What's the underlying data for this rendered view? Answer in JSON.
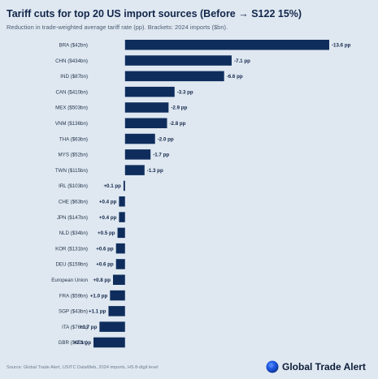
{
  "title": "Tariff cuts for top 20 US import sources (Before → S122 15%)",
  "subtitle": "Reduction in trade-weighted average tariff rate (pp). Brackets: 2024 imports ($bn).",
  "source": "Source: Global Trade Alert, USITC DataWeb, 2024 imports, HS 8-digit level",
  "brand": {
    "name": "Global Trade Alert",
    "logo_icon": "globe-logo-icon",
    "logo_colors": [
      "#1a4fd6",
      "#3b78f5",
      "#0b2a7a"
    ]
  },
  "colors": {
    "bar": "#0f2d5c",
    "background": "#dfe8f1"
  },
  "chart_data": {
    "type": "bar",
    "orientation": "horizontal",
    "categories": [
      "BRA ($42bn)",
      "CHN ($434bn)",
      "IND ($87bn)",
      "CAN ($410bn)",
      "MEX ($503bn)",
      "VNM ($136bn)",
      "THA ($63bn)",
      "MYS ($52bn)",
      "TWN ($115bn)",
      "IRL ($103bn)",
      "CHE ($63bn)",
      "JPN ($147bn)",
      "NLD ($34bn)",
      "KOR ($131bn)",
      "DEU ($159bn)",
      "European Union",
      "FRA ($59bn)",
      "SGP ($43bn)",
      "ITA ($76bn)",
      "GBR ($67bn)"
    ],
    "values": [
      -13.6,
      -7.1,
      -6.6,
      -3.3,
      -2.9,
      -2.8,
      -2.0,
      -1.7,
      -1.3,
      0.1,
      0.4,
      0.4,
      0.5,
      0.6,
      0.6,
      0.8,
      1.0,
      1.1,
      1.7,
      2.1
    ],
    "value_labels": [
      "-13.6 pp",
      "-7.1 pp",
      "-6.6 pp",
      "-3.3 pp",
      "-2.9 pp",
      "-2.8 pp",
      "-2.0 pp",
      "-1.7 pp",
      "-1.3 pp",
      "+0.1 pp",
      "+0.4 pp",
      "+0.4 pp",
      "+0.5 pp",
      "+0.6 pp",
      "+0.6 pp",
      "+0.8 pp",
      "+1.0 pp",
      "+1.1 pp",
      "+1.7 pp",
      "+2.1 pp"
    ],
    "xlim": [
      -13.6,
      2.1
    ],
    "grid": false,
    "legend": "none"
  }
}
